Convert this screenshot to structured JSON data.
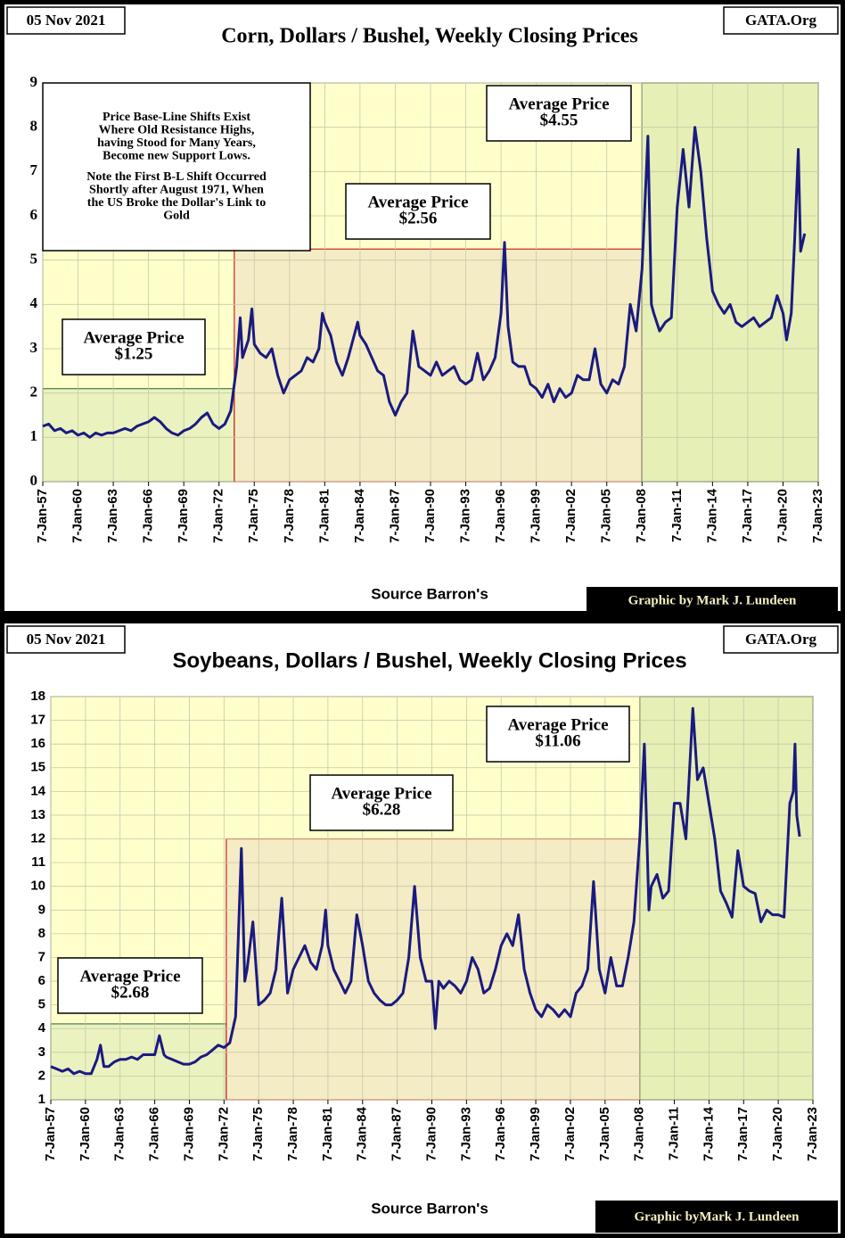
{
  "chart_data": [
    {
      "type": "line",
      "title": "Corn, Dollars / Bushel, Weekly Closing Prices",
      "date_label": "05 Nov 2021",
      "site_label": "GATA.Org",
      "source_label": "Source Barron's",
      "credit_label": "Graphic by Mark J. Lundeen",
      "xlim": [
        1957,
        2023
      ],
      "ylim": [
        0,
        9
      ],
      "yticks": [
        0,
        1,
        2,
        3,
        4,
        5,
        6,
        7,
        8,
        9
      ],
      "grid": true,
      "background": "#ffffcc",
      "xticks": [
        {
          "value": 1957,
          "label": "7-Jan-57"
        },
        {
          "value": 1960,
          "label": "7-Jan-60"
        },
        {
          "value": 1963,
          "label": "7-Jan-63"
        },
        {
          "value": 1966,
          "label": "7-Jan-66"
        },
        {
          "value": 1969,
          "label": "7-Jan-69"
        },
        {
          "value": 1972,
          "label": "7-Jan-72"
        },
        {
          "value": 1975,
          "label": "7-Jan-75"
        },
        {
          "value": 1978,
          "label": "7-Jan-78"
        },
        {
          "value": 1981,
          "label": "7-Jan-81"
        },
        {
          "value": 1984,
          "label": "7-Jan-84"
        },
        {
          "value": 1987,
          "label": "7-Jan-87"
        },
        {
          "value": 1990,
          "label": "7-Jan-90"
        },
        {
          "value": 1993,
          "label": "7-Jan-93"
        },
        {
          "value": 1996,
          "label": "7-Jan-96"
        },
        {
          "value": 1999,
          "label": "7-Jan-99"
        },
        {
          "value": 2002,
          "label": "7-Jan-02"
        },
        {
          "value": 2005,
          "label": "7-Jan-05"
        },
        {
          "value": 2008,
          "label": "7-Jan-08"
        },
        {
          "value": 2011,
          "label": "7-Jan-11"
        },
        {
          "value": 2014,
          "label": "7-Jan-14"
        },
        {
          "value": 2017,
          "label": "7-Jan-17"
        },
        {
          "value": 2020,
          "label": "7-Jan-20"
        },
        {
          "value": 2023,
          "label": "7-Jan-23"
        }
      ],
      "regions": [
        {
          "x": [
            1957,
            1973.3
          ],
          "y": [
            0,
            2.1
          ],
          "color": "#eaf2c0",
          "edge": "#4a7a44"
        },
        {
          "x": [
            1973.3,
            2008
          ],
          "y": [
            0,
            5.25
          ],
          "color": "#f4ecc4",
          "edge": "#cc2222"
        },
        {
          "x": [
            2008,
            2023
          ],
          "y": [
            0,
            9
          ],
          "color": "#e6efb6",
          "edge": "#2c5a2c"
        }
      ],
      "annotations": [
        {
          "paragraphs": [
            [
              "Price Base-Line Shifts Exist",
              "Where Old Resistance Highs,",
              "having Stood for Many Years,",
              "Become new Support Lows."
            ],
            [
              "Note the First B-L Shift Occurred",
              "Shortly after August 1971, When",
              "the US Broke the Dollar's Link to",
              "Gold"
            ]
          ]
        },
        {
          "paragraphs": [
            [
              "Average Price",
              "$1.25"
            ]
          ]
        },
        {
          "paragraphs": [
            [
              "Average Price",
              "$2.56"
            ]
          ]
        },
        {
          "paragraphs": [
            [
              "Average Price",
              "$4.55"
            ]
          ]
        }
      ],
      "x": [
        1957,
        1957.5,
        1958,
        1958.5,
        1959,
        1959.5,
        1960,
        1960.5,
        1961,
        1961.5,
        1962,
        1962.5,
        1963,
        1963.5,
        1964,
        1964.5,
        1965,
        1965.5,
        1966,
        1966.5,
        1967,
        1967.5,
        1968,
        1968.5,
        1969,
        1969.5,
        1970,
        1970.5,
        1971,
        1971.5,
        1972,
        1972.5,
        1973,
        1973.5,
        1973.8,
        1974,
        1974.5,
        1974.8,
        1975,
        1975.5,
        1976,
        1976.5,
        1977,
        1977.5,
        1978,
        1978.5,
        1979,
        1979.5,
        1980,
        1980.5,
        1980.8,
        1981,
        1981.5,
        1982,
        1982.5,
        1983,
        1983.5,
        1983.8,
        1984,
        1984.5,
        1985,
        1985.5,
        1986,
        1986.5,
        1987,
        1987.5,
        1988,
        1988.5,
        1989,
        1989.5,
        1990,
        1990.5,
        1991,
        1991.5,
        1992,
        1992.5,
        1993,
        1993.5,
        1994,
        1994.5,
        1995,
        1995.5,
        1996,
        1996.3,
        1996.6,
        1997,
        1997.5,
        1998,
        1998.5,
        1999,
        1999.5,
        2000,
        2000.5,
        2001,
        2001.5,
        2002,
        2002.5,
        2003,
        2003.5,
        2004,
        2004.5,
        2005,
        2005.5,
        2006,
        2006.5,
        2007,
        2007.5,
        2008,
        2008.5,
        2008.8,
        2009,
        2009.5,
        2010,
        2010.5,
        2011,
        2011.5,
        2012,
        2012.5,
        2013,
        2013.5,
        2014,
        2014.5,
        2015,
        2015.5,
        2016,
        2016.5,
        2017,
        2017.5,
        2018,
        2018.5,
        2019,
        2019.5,
        2020,
        2020.3,
        2020.7,
        2021,
        2021.3,
        2021.5,
        2021.85
      ],
      "series": [
        {
          "color": "#1a1a80",
          "values": [
            1.25,
            1.3,
            1.15,
            1.2,
            1.1,
            1.15,
            1.05,
            1.1,
            1.0,
            1.1,
            1.05,
            1.1,
            1.1,
            1.15,
            1.2,
            1.15,
            1.25,
            1.3,
            1.35,
            1.45,
            1.35,
            1.2,
            1.1,
            1.05,
            1.15,
            1.2,
            1.3,
            1.45,
            1.55,
            1.3,
            1.2,
            1.3,
            1.6,
            2.6,
            3.7,
            2.8,
            3.2,
            3.9,
            3.1,
            2.9,
            2.8,
            3.0,
            2.4,
            2.0,
            2.3,
            2.4,
            2.5,
            2.8,
            2.7,
            3.0,
            3.8,
            3.6,
            3.3,
            2.7,
            2.4,
            2.8,
            3.3,
            3.6,
            3.3,
            3.1,
            2.8,
            2.5,
            2.4,
            1.8,
            1.5,
            1.8,
            2.0,
            3.4,
            2.6,
            2.5,
            2.4,
            2.7,
            2.4,
            2.5,
            2.6,
            2.3,
            2.2,
            2.3,
            2.9,
            2.3,
            2.5,
            2.8,
            3.8,
            5.4,
            3.5,
            2.7,
            2.6,
            2.6,
            2.2,
            2.1,
            1.9,
            2.2,
            1.8,
            2.1,
            1.9,
            2.0,
            2.4,
            2.3,
            2.3,
            3.0,
            2.2,
            2.0,
            2.3,
            2.2,
            2.6,
            4.0,
            3.4,
            4.8,
            7.8,
            4.0,
            3.8,
            3.4,
            3.6,
            3.7,
            6.2,
            7.5,
            6.2,
            8.0,
            7.0,
            5.5,
            4.3,
            4.0,
            3.8,
            4.0,
            3.6,
            3.5,
            3.6,
            3.7,
            3.5,
            3.6,
            3.7,
            4.2,
            3.8,
            3.2,
            3.8,
            5.5,
            7.5,
            5.2,
            5.6
          ]
        }
      ]
    },
    {
      "type": "line",
      "title": "Soybeans, Dollars / Bushel, Weekly Closing Prices",
      "date_label": "05 Nov 2021",
      "site_label": "GATA.Org",
      "source_label": "Source Barron's",
      "credit_label": "Graphic byMark J. Lundeen",
      "xlim": [
        1957,
        2023
      ],
      "ylim": [
        1,
        18
      ],
      "yticks": [
        1,
        2,
        3,
        4,
        5,
        6,
        7,
        8,
        9,
        10,
        11,
        12,
        13,
        14,
        15,
        16,
        17,
        18
      ],
      "grid": true,
      "background": "#ffffcc",
      "xticks": [
        {
          "value": 1957,
          "label": "7-Jan-57"
        },
        {
          "value": 1960,
          "label": "7-Jan-60"
        },
        {
          "value": 1963,
          "label": "7-Jan-63"
        },
        {
          "value": 1966,
          "label": "7-Jan-66"
        },
        {
          "value": 1969,
          "label": "7-Jan-69"
        },
        {
          "value": 1972,
          "label": "7-Jan-72"
        },
        {
          "value": 1975,
          "label": "7-Jan-75"
        },
        {
          "value": 1978,
          "label": "7-Jan-78"
        },
        {
          "value": 1981,
          "label": "7-Jan-81"
        },
        {
          "value": 1984,
          "label": "7-Jan-84"
        },
        {
          "value": 1987,
          "label": "7-Jan-87"
        },
        {
          "value": 1990,
          "label": "7-Jan-90"
        },
        {
          "value": 1993,
          "label": "7-Jan-93"
        },
        {
          "value": 1996,
          "label": "7-Jan-96"
        },
        {
          "value": 1999,
          "label": "7-Jan-99"
        },
        {
          "value": 2002,
          "label": "7-Jan-02"
        },
        {
          "value": 2005,
          "label": "7-Jan-05"
        },
        {
          "value": 2008,
          "label": "7-Jan-08"
        },
        {
          "value": 2011,
          "label": "7-Jan-11"
        },
        {
          "value": 2014,
          "label": "7-Jan-14"
        },
        {
          "value": 2017,
          "label": "7-Jan-17"
        },
        {
          "value": 2020,
          "label": "7-Jan-20"
        },
        {
          "value": 2023,
          "label": "7-Jan-23"
        }
      ],
      "regions": [
        {
          "x": [
            1957,
            1972.2
          ],
          "y": [
            1,
            4.2
          ],
          "color": "#eaf2c0",
          "edge": "#4a7a44"
        },
        {
          "x": [
            1972.2,
            2008
          ],
          "y": [
            1,
            12
          ],
          "color": "#f4ecc4",
          "edge": "#cc2222"
        },
        {
          "x": [
            2008,
            2023
          ],
          "y": [
            1,
            18
          ],
          "color": "#e6efb6",
          "edge": "#2c5a2c"
        }
      ],
      "annotations": [
        {
          "paragraphs": [
            [
              "Average Price",
              "$2.68"
            ]
          ]
        },
        {
          "paragraphs": [
            [
              "Average Price",
              "$6.28"
            ]
          ]
        },
        {
          "paragraphs": [
            [
              "Average Price",
              "$11.06"
            ]
          ]
        }
      ],
      "x": [
        1957,
        1957.5,
        1958,
        1958.5,
        1959,
        1959.5,
        1960,
        1960.5,
        1961,
        1961.3,
        1961.6,
        1962,
        1962.5,
        1963,
        1963.5,
        1964,
        1964.5,
        1965,
        1965.5,
        1966,
        1966.4,
        1966.8,
        1967,
        1967.5,
        1968,
        1968.5,
        1969,
        1969.5,
        1970,
        1970.5,
        1971,
        1971.5,
        1972,
        1972.5,
        1973,
        1973.5,
        1973.8,
        1974,
        1974.5,
        1975,
        1975.5,
        1976,
        1976.5,
        1977,
        1977.5,
        1978,
        1978.5,
        1979,
        1979.5,
        1980,
        1980.5,
        1980.8,
        1981,
        1981.5,
        1982,
        1982.5,
        1983,
        1983.5,
        1984,
        1984.5,
        1985,
        1985.5,
        1986,
        1986.5,
        1987,
        1987.5,
        1988,
        1988.5,
        1989,
        1989.5,
        1990,
        1990.3,
        1990.6,
        1991,
        1991.5,
        1992,
        1992.5,
        1993,
        1993.5,
        1994,
        1994.5,
        1995,
        1995.5,
        1996,
        1996.5,
        1997,
        1997.5,
        1998,
        1998.5,
        1999,
        1999.5,
        2000,
        2000.5,
        2001,
        2001.5,
        2002,
        2002.5,
        2003,
        2003.5,
        2004,
        2004.5,
        2005,
        2005.5,
        2006,
        2006.5,
        2007,
        2007.5,
        2008,
        2008.4,
        2008.8,
        2009,
        2009.5,
        2010,
        2010.5,
        2011,
        2011.5,
        2012,
        2012.6,
        2013,
        2013.5,
        2014,
        2014.5,
        2015,
        2015.5,
        2016,
        2016.5,
        2017,
        2017.5,
        2018,
        2018.5,
        2019,
        2019.5,
        2020,
        2020.5,
        2021,
        2021.3,
        2021.45,
        2021.6,
        2021.85
      ],
      "series": [
        {
          "color": "#1a1a80",
          "values": [
            2.4,
            2.3,
            2.2,
            2.3,
            2.1,
            2.2,
            2.1,
            2.1,
            2.7,
            3.3,
            2.4,
            2.4,
            2.6,
            2.7,
            2.7,
            2.8,
            2.7,
            2.9,
            2.9,
            2.9,
            3.7,
            2.9,
            2.8,
            2.7,
            2.6,
            2.5,
            2.5,
            2.6,
            2.8,
            2.9,
            3.1,
            3.3,
            3.2,
            3.4,
            4.5,
            11.6,
            6.0,
            6.5,
            8.5,
            5.0,
            5.2,
            5.5,
            6.5,
            9.5,
            5.5,
            6.5,
            7.0,
            7.5,
            6.8,
            6.5,
            7.5,
            9.0,
            7.5,
            6.5,
            6.0,
            5.5,
            6.0,
            8.8,
            7.5,
            6.0,
            5.5,
            5.2,
            5.0,
            5.0,
            5.2,
            5.5,
            7.0,
            10.0,
            7.0,
            6.0,
            6.0,
            4.0,
            6.0,
            5.7,
            6.0,
            5.8,
            5.5,
            6.0,
            7.0,
            6.5,
            5.5,
            5.7,
            6.5,
            7.5,
            8.0,
            7.5,
            8.8,
            6.5,
            5.5,
            4.8,
            4.5,
            5.0,
            4.8,
            4.5,
            4.8,
            4.5,
            5.5,
            5.8,
            6.5,
            10.2,
            6.5,
            5.5,
            7.0,
            5.8,
            5.8,
            7.0,
            8.5,
            12.0,
            16.0,
            9.0,
            10.0,
            10.5,
            9.5,
            9.8,
            13.5,
            13.5,
            12.0,
            17.5,
            14.5,
            15.0,
            13.5,
            12.0,
            9.8,
            9.3,
            8.7,
            11.5,
            10.0,
            9.8,
            9.7,
            8.5,
            9.0,
            8.8,
            8.8,
            8.7,
            13.5,
            14.0,
            16.0,
            13.0,
            12.1
          ]
        }
      ]
    }
  ]
}
